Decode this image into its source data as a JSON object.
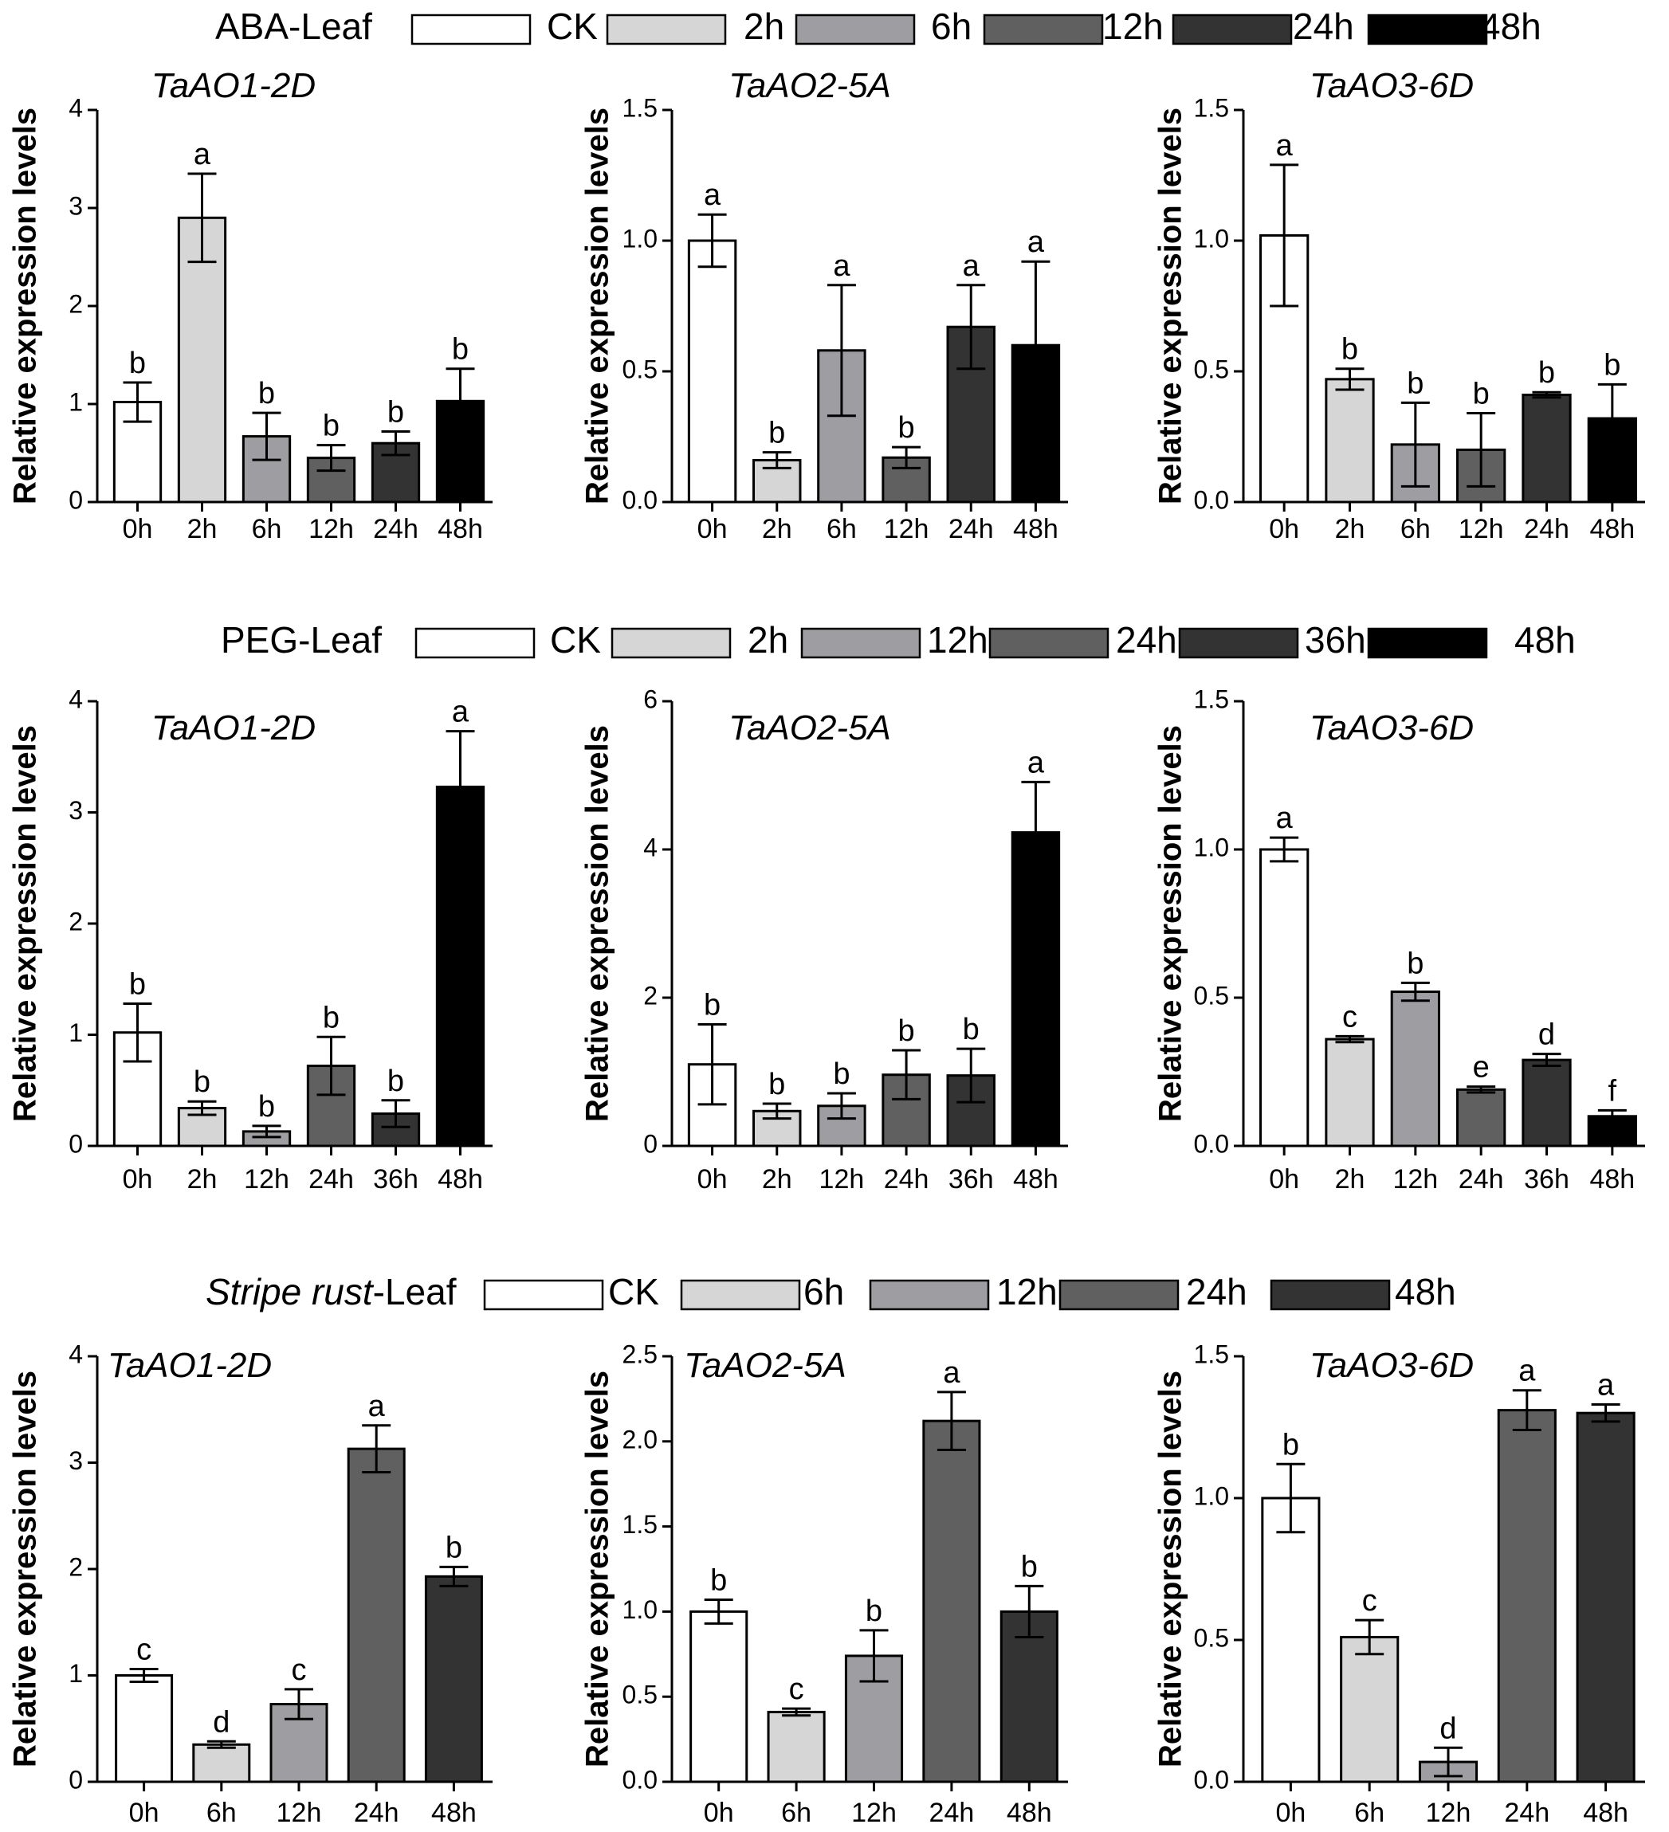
{
  "figure": "Relative expression of TaAO genes in wheat leaves under ABA, PEG and stripe rust treatments",
  "legends": [
    {
      "title": "ABA-Leaf",
      "title_italic": "",
      "title_rest": "ABA-Leaf",
      "entries": [
        {
          "label": "CK",
          "color": "#ffffff"
        },
        {
          "label": "2h",
          "color": "#d6d6d6"
        },
        {
          "label": "6h",
          "color": "#9e9ea2"
        },
        {
          "label": "12h",
          "color": "#606060"
        },
        {
          "label": "24h",
          "color": "#333333"
        },
        {
          "label": "48h",
          "color": "#000000"
        }
      ]
    },
    {
      "title": "PEG-Leaf",
      "title_italic": "",
      "title_rest": "PEG-Leaf",
      "entries": [
        {
          "label": "CK",
          "color": "#ffffff"
        },
        {
          "label": "2h",
          "color": "#d6d6d6"
        },
        {
          "label": "12h",
          "color": "#9e9ea2"
        },
        {
          "label": "24h",
          "color": "#606060"
        },
        {
          "label": "36h",
          "color": "#333333"
        },
        {
          "label": "48h",
          "color": "#000000"
        }
      ]
    },
    {
      "title": "Stripe rust-Leaf",
      "title_italic": "Stripe rust",
      "title_rest": "-Leaf",
      "entries": [
        {
          "label": "CK",
          "color": "#ffffff"
        },
        {
          "label": "6h",
          "color": "#d6d6d6"
        },
        {
          "label": "12h",
          "color": "#9e9ea2"
        },
        {
          "label": "24h",
          "color": "#606060"
        },
        {
          "label": "48h",
          "color": "#333333"
        }
      ]
    }
  ],
  "chart_data": [
    {
      "type": "bar",
      "title": "TaAO1-2D",
      "ylabel": "Relative expression levels",
      "xlabel": "",
      "categories": [
        "0h",
        "2h",
        "6h",
        "12h",
        "24h",
        "48h"
      ],
      "values": [
        1.02,
        2.9,
        0.67,
        0.45,
        0.6,
        1.03
      ],
      "errors": [
        0.2,
        0.45,
        0.24,
        0.13,
        0.12,
        0.33
      ],
      "letters": [
        "b",
        "a",
        "b",
        "b",
        "b",
        "b"
      ],
      "colors": [
        "#ffffff",
        "#d6d6d6",
        "#9e9ea2",
        "#606060",
        "#333333",
        "#000000"
      ],
      "ylim": [
        0,
        4
      ],
      "yticks": [
        0,
        1,
        2,
        3,
        4
      ],
      "yticklabels": [
        "0",
        "1",
        "2",
        "3",
        "4"
      ]
    },
    {
      "type": "bar",
      "title": "TaAO2-5A",
      "ylabel": "Relative expression levels",
      "xlabel": "",
      "categories": [
        "0h",
        "2h",
        "6h",
        "12h",
        "24h",
        "48h"
      ],
      "values": [
        1.0,
        0.16,
        0.58,
        0.17,
        0.67,
        0.6
      ],
      "errors": [
        0.1,
        0.03,
        0.25,
        0.04,
        0.16,
        0.32
      ],
      "letters": [
        "a",
        "b",
        "a",
        "b",
        "a",
        "a"
      ],
      "colors": [
        "#ffffff",
        "#d6d6d6",
        "#9e9ea2",
        "#606060",
        "#333333",
        "#000000"
      ],
      "ylim": [
        0,
        1.5
      ],
      "yticks": [
        0,
        0.5,
        1.0,
        1.5
      ],
      "yticklabels": [
        "0.0",
        "0.5",
        "1.0",
        "1.5"
      ]
    },
    {
      "type": "bar",
      "title": "TaAO3-6D",
      "ylabel": "Relative expression levels",
      "xlabel": "",
      "categories": [
        "0h",
        "2h",
        "6h",
        "12h",
        "24h",
        "48h"
      ],
      "values": [
        1.02,
        0.47,
        0.22,
        0.2,
        0.41,
        0.32
      ],
      "errors": [
        0.27,
        0.04,
        0.16,
        0.14,
        0.01,
        0.13
      ],
      "letters": [
        "a",
        "b",
        "b",
        "b",
        "b",
        "b"
      ],
      "colors": [
        "#ffffff",
        "#d6d6d6",
        "#9e9ea2",
        "#606060",
        "#333333",
        "#000000"
      ],
      "ylim": [
        0,
        1.5
      ],
      "yticks": [
        0,
        0.5,
        1.0,
        1.5
      ],
      "yticklabels": [
        "0.0",
        "0.5",
        "1.0",
        "1.5"
      ]
    },
    {
      "type": "bar",
      "title": "TaAO1-2D",
      "ylabel": "Relative expression levels",
      "xlabel": "",
      "categories": [
        "0h",
        "2h",
        "12h",
        "24h",
        "36h",
        "48h"
      ],
      "values": [
        1.02,
        0.34,
        0.13,
        0.72,
        0.29,
        3.23
      ],
      "errors": [
        0.26,
        0.06,
        0.05,
        0.26,
        0.12,
        0.5
      ],
      "letters": [
        "b",
        "b",
        "b",
        "b",
        "b",
        "a"
      ],
      "colors": [
        "#ffffff",
        "#d6d6d6",
        "#9e9ea2",
        "#606060",
        "#333333",
        "#000000"
      ],
      "ylim": [
        0,
        4
      ],
      "yticks": [
        0,
        1,
        2,
        3,
        4
      ],
      "yticklabels": [
        "0",
        "1",
        "2",
        "3",
        "4"
      ]
    },
    {
      "type": "bar",
      "title": "TaAO2-5A",
      "ylabel": "Relative expression levels",
      "xlabel": "",
      "categories": [
        "0h",
        "2h",
        "12h",
        "24h",
        "36h",
        "48h"
      ],
      "values": [
        1.1,
        0.47,
        0.54,
        0.96,
        0.95,
        4.23
      ],
      "errors": [
        0.54,
        0.1,
        0.17,
        0.33,
        0.36,
        0.68
      ],
      "letters": [
        "b",
        "b",
        "b",
        "b",
        "b",
        "a"
      ],
      "colors": [
        "#ffffff",
        "#d6d6d6",
        "#9e9ea2",
        "#606060",
        "#333333",
        "#000000"
      ],
      "ylim": [
        0,
        6
      ],
      "yticks": [
        0,
        2,
        4,
        6
      ],
      "yticklabels": [
        "0",
        "2",
        "4",
        "6"
      ]
    },
    {
      "type": "bar",
      "title": "TaAO3-6D",
      "ylabel": "Relative expression levels",
      "xlabel": "",
      "categories": [
        "0h",
        "2h",
        "12h",
        "24h",
        "36h",
        "48h"
      ],
      "values": [
        1.0,
        0.36,
        0.52,
        0.19,
        0.29,
        0.1
      ],
      "errors": [
        0.04,
        0.01,
        0.03,
        0.01,
        0.02,
        0.02
      ],
      "letters": [
        "a",
        "c",
        "b",
        "e",
        "d",
        "f"
      ],
      "colors": [
        "#ffffff",
        "#d6d6d6",
        "#9e9ea2",
        "#606060",
        "#333333",
        "#000000"
      ],
      "ylim": [
        0,
        1.5
      ],
      "yticks": [
        0,
        0.5,
        1.0,
        1.5
      ],
      "yticklabels": [
        "0.0",
        "0.5",
        "1.0",
        "1.5"
      ]
    },
    {
      "type": "bar",
      "title": "TaAO1-2D",
      "ylabel": "Relative expression levels",
      "xlabel": "",
      "categories": [
        "0h",
        "6h",
        "12h",
        "24h",
        "48h"
      ],
      "values": [
        1.0,
        0.35,
        0.73,
        3.13,
        1.93
      ],
      "errors": [
        0.06,
        0.03,
        0.14,
        0.22,
        0.09
      ],
      "letters": [
        "c",
        "d",
        "c",
        "a",
        "b"
      ],
      "colors": [
        "#ffffff",
        "#d6d6d6",
        "#9e9ea2",
        "#606060",
        "#333333"
      ],
      "ylim": [
        0,
        4
      ],
      "yticks": [
        0,
        1,
        2,
        3,
        4
      ],
      "yticklabels": [
        "0",
        "1",
        "2",
        "3",
        "4"
      ]
    },
    {
      "type": "bar",
      "title": "TaAO2-5A",
      "ylabel": "Relative expression levels",
      "xlabel": "",
      "categories": [
        "0h",
        "6h",
        "12h",
        "24h",
        "48h"
      ],
      "values": [
        1.0,
        0.41,
        0.74,
        2.12,
        1.0
      ],
      "errors": [
        0.07,
        0.02,
        0.15,
        0.17,
        0.15
      ],
      "letters": [
        "b",
        "c",
        "b",
        "a",
        "b"
      ],
      "colors": [
        "#ffffff",
        "#d6d6d6",
        "#9e9ea2",
        "#606060",
        "#333333"
      ],
      "ylim": [
        0,
        2.5
      ],
      "yticks": [
        0,
        0.5,
        1.0,
        1.5,
        2.0,
        2.5
      ],
      "yticklabels": [
        "0.0",
        "0.5",
        "1.0",
        "1.5",
        "2.0",
        "2.5"
      ]
    },
    {
      "type": "bar",
      "title": "TaAO3-6D",
      "ylabel": "Relative expression levels",
      "xlabel": "",
      "categories": [
        "0h",
        "6h",
        "12h",
        "24h",
        "48h"
      ],
      "values": [
        1.0,
        0.51,
        0.07,
        1.31,
        1.3
      ],
      "errors": [
        0.12,
        0.06,
        0.05,
        0.07,
        0.03
      ],
      "letters": [
        "b",
        "c",
        "d",
        "a",
        "a"
      ],
      "colors": [
        "#ffffff",
        "#d6d6d6",
        "#9e9ea2",
        "#606060",
        "#333333"
      ],
      "ylim": [
        0,
        1.5
      ],
      "yticks": [
        0,
        0.5,
        1.0,
        1.5
      ],
      "yticklabels": [
        "0.0",
        "0.5",
        "1.0",
        "1.5"
      ]
    }
  ]
}
